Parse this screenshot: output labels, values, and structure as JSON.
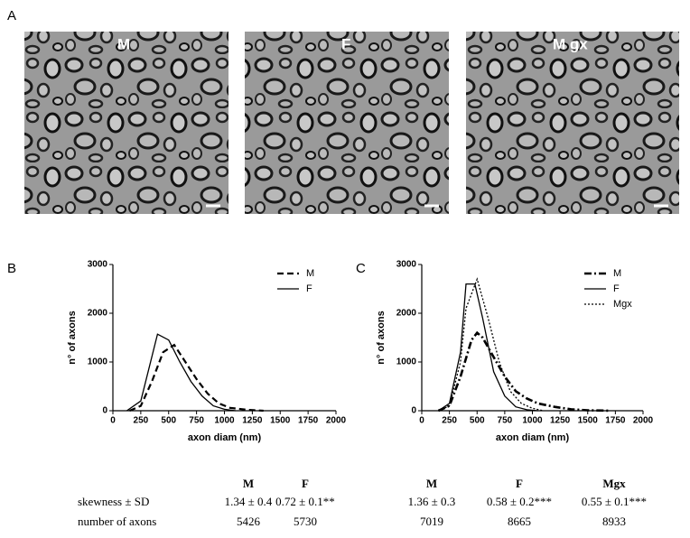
{
  "panels": [
    "A",
    "B",
    "C"
  ],
  "micrographs": [
    {
      "label": "M"
    },
    {
      "label": "F"
    },
    {
      "label": "M gx"
    }
  ],
  "chart_data": [
    {
      "type": "line",
      "x_label": "axon diam (nm)",
      "y_label": "n° of axons",
      "xlim": [
        0,
        2000
      ],
      "xticks": [
        0,
        250,
        500,
        750,
        1000,
        1250,
        1500,
        1750,
        2000
      ],
      "ylim": [
        0,
        3000
      ],
      "yticks": [
        0,
        1000,
        2000,
        3000
      ],
      "legend": "upper right",
      "series": [
        {
          "name": "M",
          "color": "#000000",
          "line_style": "dashed",
          "x": [
            150,
            250,
            350,
            450,
            550,
            650,
            750,
            850,
            950,
            1050,
            1200,
            1350
          ],
          "values": [
            0,
            100,
            600,
            1200,
            1350,
            1000,
            650,
            350,
            150,
            60,
            20,
            0
          ]
        },
        {
          "name": "F",
          "color": "#000000",
          "line_style": "solid",
          "x": [
            125,
            250,
            400,
            500,
            600,
            700,
            800,
            900,
            1000,
            1100
          ],
          "values": [
            0,
            200,
            1570,
            1450,
            1000,
            600,
            300,
            100,
            30,
            0
          ]
        }
      ]
    },
    {
      "type": "line",
      "x_label": "axon diam (nm)",
      "y_label": "n° of axons",
      "xlim": [
        0,
        2000
      ],
      "xticks": [
        0,
        250,
        500,
        750,
        1000,
        1250,
        1500,
        1750,
        2000
      ],
      "ylim": [
        0,
        3000
      ],
      "yticks": [
        0,
        1000,
        2000,
        3000
      ],
      "legend": "upper right",
      "series": [
        {
          "name": "M",
          "color": "#000000",
          "line_style": "dashdot",
          "x": [
            150,
            250,
            350,
            450,
            500,
            550,
            650,
            750,
            850,
            950,
            1050,
            1200,
            1350,
            1500,
            1700
          ],
          "values": [
            0,
            100,
            700,
            1450,
            1600,
            1500,
            1100,
            700,
            400,
            250,
            150,
            80,
            30,
            10,
            0
          ]
        },
        {
          "name": "F",
          "color": "#000000",
          "line_style": "solid",
          "x": [
            150,
            250,
            350,
            400,
            480,
            550,
            650,
            750,
            850,
            950,
            1050
          ],
          "values": [
            0,
            150,
            1200,
            2600,
            2600,
            1900,
            800,
            300,
            80,
            20,
            0
          ]
        },
        {
          "name": "Mgx",
          "color": "#000000",
          "line_style": "dotted",
          "x": [
            150,
            250,
            350,
            400,
            500,
            600,
            700,
            800,
            900,
            1000,
            1100
          ],
          "values": [
            0,
            100,
            1000,
            2100,
            2700,
            1900,
            1000,
            400,
            150,
            50,
            0
          ]
        }
      ]
    }
  ],
  "tables": [
    {
      "header": [
        "M",
        "F"
      ],
      "rows": [
        {
          "label": "skewness ± SD",
          "cells": [
            "1.34 ± 0.4",
            "0.72 ± 0.1**"
          ]
        },
        {
          "label": "number of axons",
          "cells": [
            "5426",
            "5730"
          ]
        }
      ]
    },
    {
      "header": [
        "M",
        "F",
        "Mgx"
      ],
      "rows": [
        {
          "cells": [
            "1.36 ± 0.3",
            "0.58 ± 0.2***",
            "0.55 ± 0.1***"
          ]
        },
        {
          "cells": [
            "7019",
            "8665",
            "8933"
          ]
        }
      ]
    }
  ]
}
